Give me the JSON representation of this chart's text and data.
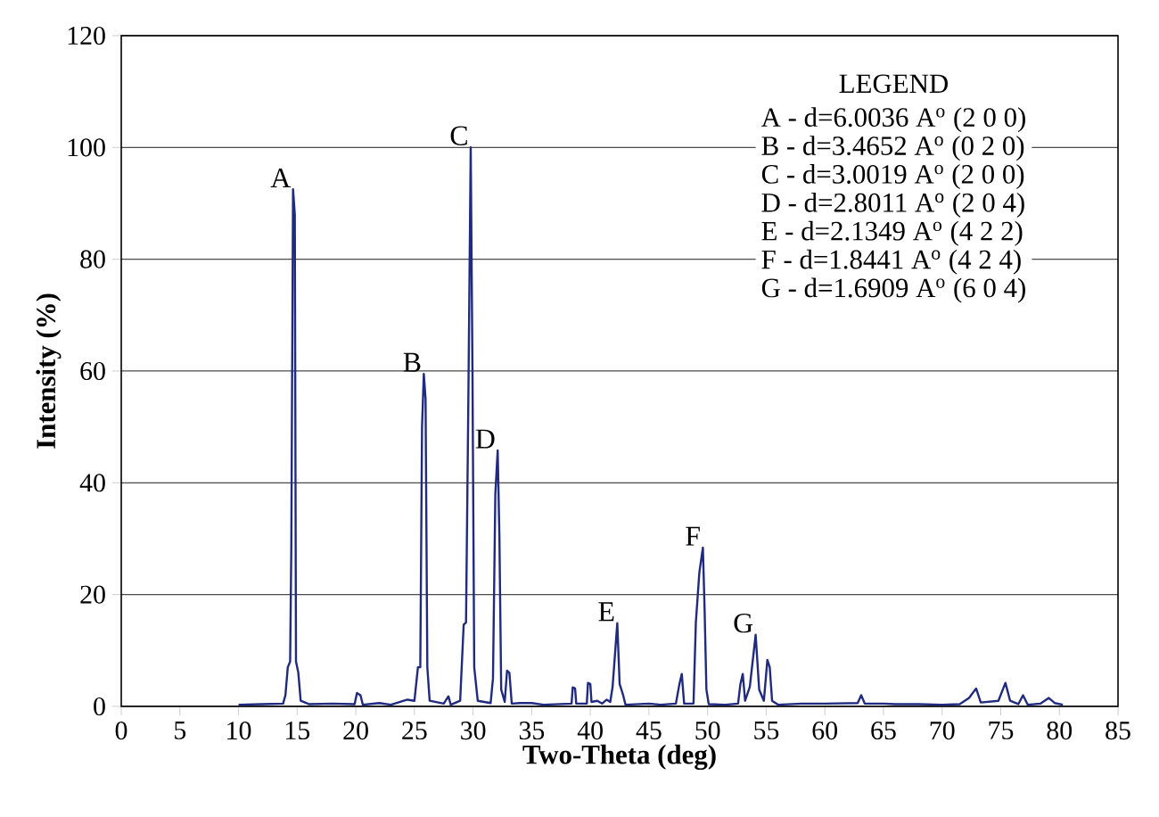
{
  "chart_data": {
    "type": "line",
    "xlabel": "Two-Theta (deg)",
    "ylabel": "Intensity (%)",
    "xlim": [
      0,
      85
    ],
    "ylim": [
      0,
      120
    ],
    "xticks": [
      0,
      5,
      10,
      15,
      20,
      25,
      30,
      35,
      40,
      45,
      50,
      55,
      60,
      65,
      70,
      75,
      80,
      85
    ],
    "yticks": [
      0,
      20,
      40,
      60,
      80,
      100,
      120
    ],
    "grid": "y",
    "marker": "none",
    "line_style": "solid",
    "color": "#1f2a80",
    "x": [
      10.0,
      12,
      13.8,
      14.0,
      14.2,
      14.4,
      14.5,
      14.65,
      14.8,
      14.9,
      15.1,
      15.3,
      16,
      18,
      19.9,
      20.1,
      20.4,
      20.6,
      22,
      23,
      24.4,
      25.0,
      25.3,
      25.5,
      25.65,
      25.8,
      25.95,
      26.1,
      26.3,
      27.5,
      27.9,
      28.1,
      28.9,
      29.2,
      29.4,
      29.6,
      29.8,
      29.95,
      30.1,
      30.4,
      31.5,
      31.7,
      31.9,
      32.1,
      32.25,
      32.4,
      32.7,
      32.9,
      33.1,
      33.3,
      34,
      35,
      36,
      38.4,
      38.5,
      38.7,
      38.8,
      39.7,
      39.8,
      40,
      40.1,
      40.6,
      41,
      41.4,
      41.7,
      41.9,
      42.3,
      42.5,
      42.8,
      43.0,
      45,
      46,
      47.3,
      47.6,
      47.8,
      48.0,
      48.8,
      49.0,
      49.3,
      49.6,
      49.75,
      49.9,
      50.1,
      51.5,
      52.6,
      52.8,
      53.0,
      53.2,
      53.6,
      54.1,
      54.4,
      54.8,
      55.1,
      55.3,
      55.5,
      56,
      58,
      60,
      62.8,
      63.1,
      63.4,
      65,
      66,
      68,
      70,
      71.5,
      72.3,
      72.9,
      73.3,
      74.8,
      75.4,
      75.8,
      76.5,
      76.9,
      77.3,
      78.4,
      79.1,
      79.6,
      80.3
    ],
    "values": [
      0.3,
      0.4,
      0.5,
      2,
      7,
      8,
      28,
      92.5,
      88,
      8,
      6,
      1,
      0.4,
      0.5,
      0.4,
      2.4,
      2,
      0.3,
      0.6,
      0.3,
      1.2,
      1,
      7,
      7,
      50,
      59.5,
      55,
      7,
      1,
      0.5,
      1.8,
      0.3,
      1,
      14.6,
      15,
      55,
      100,
      60,
      7,
      1,
      0.6,
      5,
      38,
      45.8,
      30,
      3,
      0.8,
      6.4,
      6,
      0.5,
      0.6,
      0.6,
      0.3,
      0.5,
      3.4,
      3.2,
      0.5,
      0.5,
      4.2,
      4,
      0.8,
      1,
      0.5,
      1.2,
      0.8,
      3.5,
      14.9,
      4,
      2,
      0.3,
      0.5,
      0.3,
      0.5,
      4,
      5.8,
      0.5,
      0.5,
      15,
      24,
      28.4,
      17,
      3,
      0.4,
      0.3,
      0.5,
      4,
      5.8,
      1,
      3.5,
      12.8,
      3,
      1,
      8.3,
      7,
      1,
      0.3,
      0.5,
      0.5,
      0.6,
      2,
      0.5,
      0.5,
      0.4,
      0.4,
      0.3,
      0.4,
      1.5,
      3.2,
      0.7,
      1,
      4.2,
      1,
      0.4,
      2,
      0.3,
      0.5,
      1.5,
      0.6,
      0.3
    ],
    "annotations": [
      {
        "text": "A",
        "x": 14.65,
        "y": 92.5
      },
      {
        "text": "B",
        "x": 25.8,
        "y": 59.5
      },
      {
        "text": "C",
        "x": 29.8,
        "y": 100
      },
      {
        "text": "D",
        "x": 32.1,
        "y": 45.8
      },
      {
        "text": "E",
        "x": 42.3,
        "y": 14.9
      },
      {
        "text": "F",
        "x": 49.6,
        "y": 28.4
      },
      {
        "text": "G",
        "x": 54.1,
        "y": 12.8
      },
      "LEGEND",
      "A -  d=6.0036 A$^{o}$ (2 0 0)",
      "B -  d=3.4652 A$^{o}$ (0 2 0)",
      "C -  d=3.0019 A$^{o}$ (2 0 0)",
      "D -  d=2.8011 A$^{o}$ (2 0 4)",
      "E -  d=2.1349 A$^{o}$ (4 2 2)",
      "F -  d=1.8441 A$^{o}$ (4 2 4)",
      "G -  d=1.6909 A$^{o}$ (6 0 4)"
    ]
  }
}
